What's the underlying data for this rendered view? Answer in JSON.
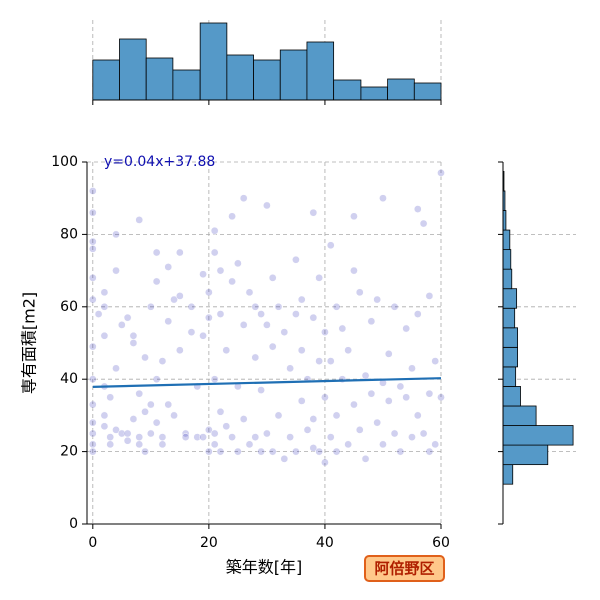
{
  "chart_data": [
    {
      "type": "scatter",
      "x_label": "築年数[年]",
      "y_label": "専有面積[m2]",
      "annotation": "阿倍野区",
      "xlim": [
        -1,
        60
      ],
      "ylim": [
        0,
        100
      ],
      "xticks": [
        0,
        20,
        40,
        60
      ],
      "yticks": [
        0,
        20,
        40,
        60,
        80,
        100
      ],
      "grid": true,
      "color": "#2a2ab8",
      "regression": {
        "slope": 0.04,
        "intercept": 37.88,
        "x_range": [
          0,
          60
        ],
        "label": "y=0.04x+37.88",
        "color": "#1f6fb4",
        "label_color": "#1010b0"
      },
      "x": [
        0,
        0,
        0,
        0,
        0,
        0,
        0,
        0,
        0,
        0,
        0,
        0,
        0,
        1,
        2,
        2,
        2,
        2,
        2,
        2,
        3,
        3,
        3,
        4,
        4,
        4,
        4,
        5,
        5,
        6,
        6,
        6,
        7,
        7,
        7,
        8,
        8,
        8,
        8,
        9,
        9,
        9,
        10,
        10,
        10,
        11,
        11,
        11,
        11,
        12,
        12,
        12,
        13,
        13,
        13,
        14,
        14,
        15,
        15,
        15,
        16,
        16,
        17,
        17,
        18,
        18,
        19,
        19,
        19,
        20,
        20,
        20,
        20,
        21,
        21,
        21,
        21,
        21,
        22,
        22,
        22,
        22,
        23,
        23,
        24,
        24,
        24,
        25,
        25,
        25,
        26,
        26,
        26,
        27,
        27,
        28,
        28,
        28,
        29,
        29,
        29,
        30,
        30,
        30,
        31,
        31,
        31,
        32,
        32,
        33,
        33,
        34,
        34,
        35,
        35,
        35,
        36,
        36,
        36,
        37,
        37,
        38,
        38,
        38,
        38,
        39,
        39,
        39,
        40,
        40,
        40,
        41,
        41,
        41,
        42,
        42,
        42,
        43,
        43,
        44,
        44,
        45,
        45,
        45,
        46,
        46,
        47,
        47,
        48,
        48,
        49,
        49,
        50,
        50,
        50,
        51,
        51,
        52,
        52,
        53,
        53,
        54,
        54,
        55,
        55,
        56,
        56,
        56,
        57,
        57,
        58,
        58,
        58,
        59,
        59,
        60,
        60
      ],
      "y": [
        92,
        86,
        78,
        76,
        68,
        62,
        49,
        40,
        33,
        28,
        25,
        22,
        20,
        58,
        64,
        60,
        52,
        38,
        30,
        27,
        35,
        22,
        24,
        70,
        80,
        43,
        26,
        25,
        55,
        57,
        25,
        23,
        29,
        52,
        50,
        84,
        36,
        24,
        22,
        20,
        31,
        46,
        25,
        60,
        33,
        75,
        67,
        40,
        28,
        22,
        24,
        45,
        56,
        71,
        33,
        62,
        30,
        63,
        75,
        48,
        25,
        24,
        60,
        53,
        38,
        24,
        69,
        52,
        24,
        64,
        57,
        26,
        20,
        81,
        75,
        40,
        25,
        22,
        70,
        58,
        31,
        20,
        48,
        27,
        67,
        85,
        24,
        72,
        20,
        38,
        90,
        55,
        29,
        64,
        22,
        46,
        24,
        60,
        58,
        37,
        20,
        88,
        55,
        25,
        49,
        68,
        20,
        60,
        30,
        53,
        18,
        43,
        24,
        58,
        73,
        20,
        34,
        48,
        62,
        26,
        40,
        86,
        57,
        29,
        21,
        68,
        45,
        20,
        53,
        35,
        17,
        77,
        45,
        24,
        60,
        30,
        20,
        54,
        40,
        48,
        22,
        70,
        85,
        33,
        64,
        26,
        41,
        18,
        56,
        36,
        62,
        28,
        90,
        39,
        22,
        47,
        34,
        60,
        25,
        38,
        20,
        35,
        54,
        43,
        24,
        58,
        87,
        30,
        83,
        25,
        63,
        36,
        20,
        45,
        22,
        97,
        35
      ]
    },
    {
      "type": "histogram",
      "orientation": "vertical",
      "color": "#5599c8",
      "bins": [
        0,
        4.6,
        9.2,
        13.8,
        18.5,
        23.1,
        27.7,
        32.3,
        36.9,
        41.5,
        46.2,
        50.8,
        55.4,
        60
      ],
      "counts": [
        40,
        61,
        42,
        30,
        77,
        45,
        40,
        50,
        58,
        20,
        13,
        21,
        17
      ],
      "xlim": [
        -1,
        60
      ],
      "ylim": [
        0,
        80
      ],
      "xticks": [
        0,
        20,
        40,
        60
      ],
      "grid": true
    },
    {
      "type": "histogram",
      "orientation": "horizontal",
      "color": "#5599c8",
      "bins": [
        11.0,
        16.4,
        21.8,
        27.2,
        32.6,
        38.0,
        43.4,
        48.8,
        54.2,
        59.6,
        65.0,
        70.4,
        75.8,
        81.2,
        86.6,
        92.0,
        97.4
      ],
      "counts": [
        10,
        46,
        72,
        34,
        18,
        13,
        15,
        15,
        12,
        14,
        9,
        8,
        7,
        3,
        2,
        1
      ],
      "xlim": [
        0,
        75
      ],
      "ylim": [
        0,
        100
      ],
      "yticks": [
        0,
        20,
        40,
        60,
        80,
        100
      ],
      "grid": true
    }
  ]
}
